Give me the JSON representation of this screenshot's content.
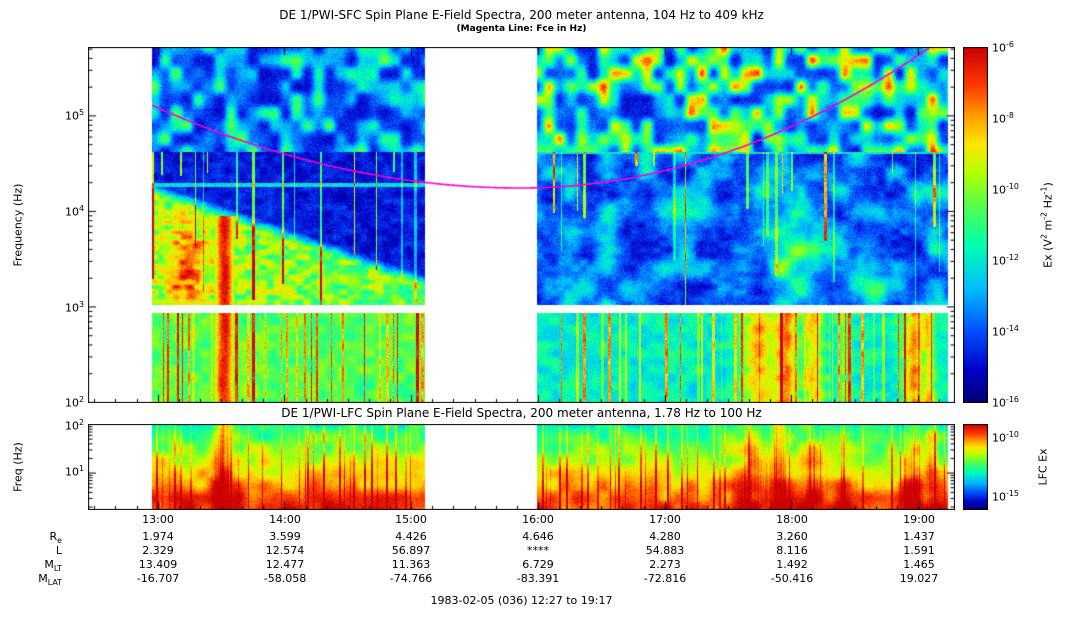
{
  "figure": {
    "footer": "1983-02-05 (036) 12:27 to 19:17"
  },
  "chart_data": [
    {
      "type": "heatmap",
      "id": "sfc",
      "title": "DE 1/PWI-SFC  Spin Plane E-Field Spectra, 200 meter antenna, 104 Hz to 409 kHz",
      "subtitle": "(Magenta Line: Fce in Hz)",
      "ylabel": "Frequency (Hz)",
      "yticks": [
        "10^5",
        "10^4",
        "10^3",
        "10^2"
      ],
      "ylim": [
        "104 Hz",
        "409 kHz"
      ],
      "x_range": [
        "12:27",
        "19:17"
      ],
      "colorbar_label": "Ex (V^2 m^-2 Hz^-1)",
      "colorbar_ticks": [
        "10^-6",
        "10^-8",
        "10^-10",
        "10^-12",
        "10^-14",
        "10^-16"
      ],
      "overlay_line": {
        "name": "Fce",
        "color": "#ff00cc"
      },
      "data_gap": [
        "15:06",
        "16:00"
      ]
    },
    {
      "type": "heatmap",
      "id": "lfc",
      "title": "DE 1/PWI-LFC  Spin Plane E-Field Spectra, 200 meter antenna, 1.78 Hz to 100 Hz",
      "ylabel": "Freq (Hz)",
      "yticks": [
        "10^2",
        "10^1"
      ],
      "ylim": [
        "1.78 Hz",
        "100 Hz"
      ],
      "colorbar_label": "LFC Ex",
      "colorbar_ticks": [
        "10^-10",
        "10^-15"
      ]
    },
    {
      "type": "table",
      "id": "ephemeris",
      "columns": [
        "13:00",
        "14:00",
        "15:00",
        "16:00",
        "17:00",
        "18:00",
        "19:00"
      ],
      "rows": [
        {
          "label": "R_e",
          "values": [
            "1.974",
            "3.599",
            "4.426",
            "4.646",
            "4.280",
            "3.260",
            "1.437"
          ]
        },
        {
          "label": "L",
          "values": [
            "2.329",
            "12.574",
            "56.897",
            "****",
            "54.883",
            "8.116",
            "1.591"
          ]
        },
        {
          "label": "M_LT",
          "values": [
            "13.409",
            "12.477",
            "11.363",
            "6.729",
            "2.273",
            "1.492",
            "1.465"
          ]
        },
        {
          "label": "M_LAT",
          "values": [
            "-16.707",
            "-58.058",
            "-74.766",
            "-83.391",
            "-72.816",
            "-50.416",
            "19.027"
          ]
        }
      ]
    }
  ]
}
